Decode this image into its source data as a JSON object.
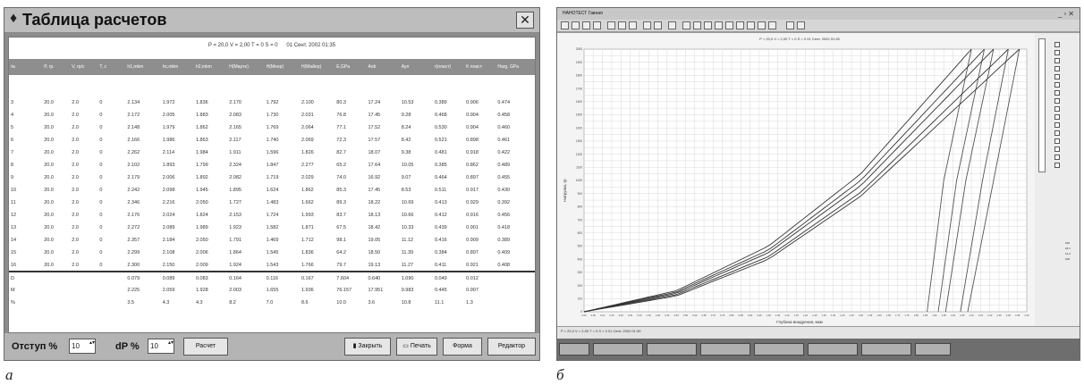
{
  "left_window": {
    "title": "Таблица расчетов",
    "info_line": {
      "p": "P = 20,0 V = 2,00 T = 0 S = 0",
      "date": "01 Сент. 2002 01:35"
    },
    "columns": [
      "№",
      "P, гр.",
      "V, гр/с",
      "T, с",
      "h1,mkm",
      "hc,mkm",
      "h2,mkm",
      "H(Mapтe)",
      "H(Меер)",
      "H(Майер)",
      "E,GPa",
      "Aob",
      "Aул",
      "r(пласт)",
      "K пласт",
      "Harg, GPa"
    ],
    "rows": [
      [
        "3",
        "20.0",
        "2.0",
        "0",
        "2.134",
        "1.972",
        "1.836",
        "2.170",
        "1.792",
        "2.100",
        "80.3",
        "17.24",
        "10.53",
        "0.389",
        "0.906",
        "0.474"
      ],
      [
        "4",
        "20.0",
        "2.0",
        "0",
        "2.172",
        "2.005",
        "1.883",
        "2.083",
        "1.730",
        "2.031",
        "76.8",
        "17.45",
        "9.28",
        "0.468",
        "0.904",
        "0.458"
      ],
      [
        "5",
        "20.0",
        "2.0",
        "0",
        "2.148",
        "1.979",
        "1.862",
        "2.165",
        "1.769",
        "2.064",
        "77.1",
        "17.52",
        "8.24",
        "0.530",
        "0.904",
        "0.460"
      ],
      [
        "6",
        "20.0",
        "2.0",
        "0",
        "2.166",
        "1.986",
        "1.863",
        "2.117",
        "1.740",
        "2.069",
        "72.3",
        "17.57",
        "8.42",
        "0.521",
        "0.898",
        "0.461"
      ],
      [
        "7",
        "20.0",
        "2.0",
        "0",
        "2.262",
        "2.114",
        "1.984",
        "1.911",
        "1.596",
        "1.826",
        "82.7",
        "18.07",
        "9.38",
        "0.481",
        "0.918",
        "0.422"
      ],
      [
        "8",
        "20.0",
        "2.0",
        "0",
        "2.102",
        "1.893",
        "1.799",
        "2.324",
        "1.847",
        "2.277",
        "65.2",
        "17.64",
        "10.05",
        "0.385",
        "0.862",
        "0.489"
      ],
      [
        "9",
        "20.0",
        "2.0",
        "0",
        "2.179",
        "2.006",
        "1.892",
        "2.082",
        "1.719",
        "2.029",
        "74.0",
        "16.92",
        "9.07",
        "0.464",
        "0.897",
        "0.455"
      ],
      [
        "10",
        "20.0",
        "2.0",
        "0",
        "2.242",
        "2.098",
        "1.945",
        "1.895",
        "1.624",
        "1.862",
        "85.3",
        "17.45",
        "8.53",
        "0.511",
        "0.917",
        "0.430"
      ],
      [
        "11",
        "20.0",
        "2.0",
        "0",
        "2.346",
        "2.216",
        "2.050",
        "1.727",
        "1.483",
        "1.662",
        "89.3",
        "18.22",
        "10.69",
        "0.413",
        "0.929",
        "0.392"
      ],
      [
        "12",
        "20.0",
        "2.0",
        "0",
        "2.176",
        "2.024",
        "1.824",
        "2.153",
        "1.724",
        "1.993",
        "83.7",
        "18.13",
        "10.66",
        "0.412",
        "0.916",
        "0.456"
      ],
      [
        "13",
        "20.0",
        "2.0",
        "0",
        "2.272",
        "2.089",
        "1.989",
        "1.923",
        "1.582",
        "1.871",
        "67.5",
        "18.42",
        "10.33",
        "0.439",
        "0.901",
        "0.418"
      ],
      [
        "14",
        "20.0",
        "2.0",
        "0",
        "2.357",
        "2.184",
        "2.050",
        "1.791",
        "1.469",
        "1.712",
        "98.1",
        "19.05",
        "11.12",
        "0.416",
        "0.909",
        "0.389"
      ],
      [
        "15",
        "20.0",
        "2.0",
        "0",
        "2.299",
        "2.108",
        "2.006",
        "1.864",
        "1.545",
        "1.836",
        "64.2",
        "18.50",
        "11.39",
        "0.384",
        "0.897",
        "0.409"
      ],
      [
        "16",
        "20.0",
        "2.0",
        "0",
        "2.300",
        "2.150",
        "2.009",
        "1.924",
        "1.543",
        "1.766",
        "79.7",
        "19.13",
        "11.27",
        "0.411",
        "0.921",
        "0.408"
      ]
    ],
    "stats": [
      [
        "D",
        "",
        "",
        "",
        "0.079",
        "0.089",
        "0.083",
        "0.164",
        "0.116",
        "0.167",
        "7.604",
        "0.640",
        "1.090",
        "0.049",
        "0.012",
        ""
      ],
      [
        "M",
        "",
        "",
        "",
        "2.225",
        "2.059",
        "1.928",
        "2.003",
        "1.655",
        "1.936",
        "76.157",
        "17.951",
        "9.983",
        "0.445",
        "0.907",
        ""
      ],
      [
        "%",
        "",
        "",
        "",
        "3.5",
        "4.3",
        "4.3",
        "8.2",
        "7.0",
        "8.6",
        "10.0",
        "3.6",
        "10.8",
        "11.1",
        "1.3",
        ""
      ]
    ],
    "bottom": {
      "otstup_label": "Отступ %",
      "otstup_value": "10",
      "dp_label": "dP %",
      "dp_value": "10",
      "calc_button": "Расчет",
      "close_button": "Закрыть",
      "print_button": "Печать",
      "form_button": "Форма",
      "editor_button": "Редактор"
    }
  },
  "right_window": {
    "title": "НАНОТЕСТ Гавная",
    "status_text": "P = 20,0 V = 2,00 T = 0 S = 0   01 Сент. 2002 01:35",
    "sidebar_values": [
      "100",
      "22.1",
      "12.4",
      "100"
    ]
  },
  "chart_data": {
    "type": "line",
    "title": "P = 20,0 V = 2,00 T = 0 S = 0   01 Сент. 2002 01:35",
    "xlabel": "Глубина внедрения, мкм",
    "ylabel": "Нагрузка, гр",
    "xlim": [
      0.0,
      2.4
    ],
    "ylim": [
      0,
      20
    ],
    "grid": true,
    "series": [
      {
        "loading": [
          [
            0,
            0
          ],
          [
            0.5,
            1.6
          ],
          [
            1.0,
            5.0
          ],
          [
            1.5,
            10.5
          ],
          [
            2.1,
            20
          ]
        ],
        "unloading": [
          [
            2.1,
            20
          ],
          [
            1.95,
            10
          ],
          [
            1.86,
            0
          ]
        ]
      },
      {
        "loading": [
          [
            0,
            0
          ],
          [
            0.5,
            1.5
          ],
          [
            1.0,
            4.7
          ],
          [
            1.5,
            10.0
          ],
          [
            2.17,
            20
          ]
        ],
        "unloading": [
          [
            2.17,
            20
          ],
          [
            2.02,
            10
          ],
          [
            1.92,
            0
          ]
        ]
      },
      {
        "loading": [
          [
            0,
            0
          ],
          [
            0.5,
            1.4
          ],
          [
            1.0,
            4.5
          ],
          [
            1.5,
            9.6
          ],
          [
            2.22,
            20
          ]
        ],
        "unloading": [
          [
            2.22,
            20
          ],
          [
            2.07,
            10
          ],
          [
            1.96,
            0
          ]
        ]
      },
      {
        "loading": [
          [
            0,
            0
          ],
          [
            0.5,
            1.3
          ],
          [
            1.0,
            4.2
          ],
          [
            1.5,
            9.1
          ],
          [
            2.3,
            20
          ]
        ],
        "unloading": [
          [
            2.3,
            20
          ],
          [
            2.16,
            10
          ],
          [
            2.04,
            0
          ]
        ]
      },
      {
        "loading": [
          [
            0,
            0
          ],
          [
            0.5,
            1.2
          ],
          [
            1.0,
            4.0
          ],
          [
            1.5,
            8.8
          ],
          [
            2.36,
            20
          ]
        ],
        "unloading": [
          [
            2.36,
            20
          ],
          [
            2.22,
            10
          ],
          [
            2.08,
            0
          ]
        ]
      }
    ]
  },
  "captions": {
    "left": "a",
    "right": "б"
  }
}
